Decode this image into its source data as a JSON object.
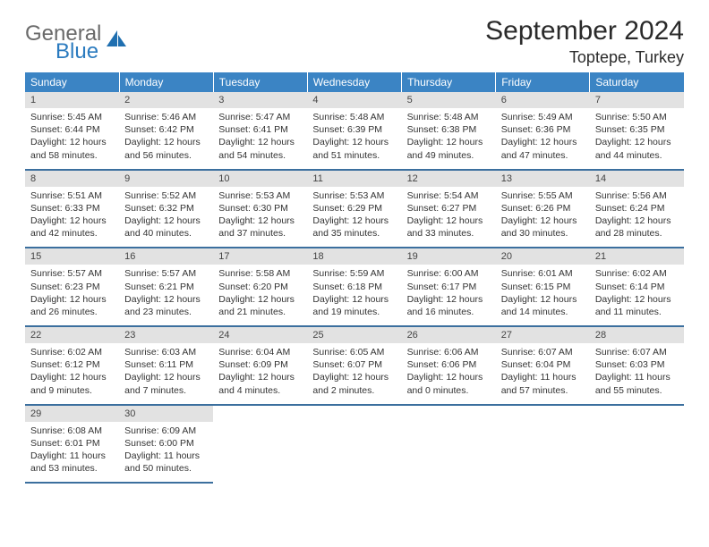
{
  "brand": {
    "word1": "General",
    "word2": "Blue"
  },
  "title": "September 2024",
  "location": "Toptepe, Turkey",
  "colors": {
    "header_bg": "#3b84c4",
    "header_fg": "#ffffff",
    "daynum_bg": "#e2e2e2",
    "row_divider": "#3b6f9e",
    "logo_gray": "#6a6a6a",
    "logo_blue": "#2b7bbf"
  },
  "weekdays": [
    "Sunday",
    "Monday",
    "Tuesday",
    "Wednesday",
    "Thursday",
    "Friday",
    "Saturday"
  ],
  "weeks": [
    [
      {
        "n": "1",
        "sr": "5:45 AM",
        "ss": "6:44 PM",
        "dl": "12 hours and 58 minutes."
      },
      {
        "n": "2",
        "sr": "5:46 AM",
        "ss": "6:42 PM",
        "dl": "12 hours and 56 minutes."
      },
      {
        "n": "3",
        "sr": "5:47 AM",
        "ss": "6:41 PM",
        "dl": "12 hours and 54 minutes."
      },
      {
        "n": "4",
        "sr": "5:48 AM",
        "ss": "6:39 PM",
        "dl": "12 hours and 51 minutes."
      },
      {
        "n": "5",
        "sr": "5:48 AM",
        "ss": "6:38 PM",
        "dl": "12 hours and 49 minutes."
      },
      {
        "n": "6",
        "sr": "5:49 AM",
        "ss": "6:36 PM",
        "dl": "12 hours and 47 minutes."
      },
      {
        "n": "7",
        "sr": "5:50 AM",
        "ss": "6:35 PM",
        "dl": "12 hours and 44 minutes."
      }
    ],
    [
      {
        "n": "8",
        "sr": "5:51 AM",
        "ss": "6:33 PM",
        "dl": "12 hours and 42 minutes."
      },
      {
        "n": "9",
        "sr": "5:52 AM",
        "ss": "6:32 PM",
        "dl": "12 hours and 40 minutes."
      },
      {
        "n": "10",
        "sr": "5:53 AM",
        "ss": "6:30 PM",
        "dl": "12 hours and 37 minutes."
      },
      {
        "n": "11",
        "sr": "5:53 AM",
        "ss": "6:29 PM",
        "dl": "12 hours and 35 minutes."
      },
      {
        "n": "12",
        "sr": "5:54 AM",
        "ss": "6:27 PM",
        "dl": "12 hours and 33 minutes."
      },
      {
        "n": "13",
        "sr": "5:55 AM",
        "ss": "6:26 PM",
        "dl": "12 hours and 30 minutes."
      },
      {
        "n": "14",
        "sr": "5:56 AM",
        "ss": "6:24 PM",
        "dl": "12 hours and 28 minutes."
      }
    ],
    [
      {
        "n": "15",
        "sr": "5:57 AM",
        "ss": "6:23 PM",
        "dl": "12 hours and 26 minutes."
      },
      {
        "n": "16",
        "sr": "5:57 AM",
        "ss": "6:21 PM",
        "dl": "12 hours and 23 minutes."
      },
      {
        "n": "17",
        "sr": "5:58 AM",
        "ss": "6:20 PM",
        "dl": "12 hours and 21 minutes."
      },
      {
        "n": "18",
        "sr": "5:59 AM",
        "ss": "6:18 PM",
        "dl": "12 hours and 19 minutes."
      },
      {
        "n": "19",
        "sr": "6:00 AM",
        "ss": "6:17 PM",
        "dl": "12 hours and 16 minutes."
      },
      {
        "n": "20",
        "sr": "6:01 AM",
        "ss": "6:15 PM",
        "dl": "12 hours and 14 minutes."
      },
      {
        "n": "21",
        "sr": "6:02 AM",
        "ss": "6:14 PM",
        "dl": "12 hours and 11 minutes."
      }
    ],
    [
      {
        "n": "22",
        "sr": "6:02 AM",
        "ss": "6:12 PM",
        "dl": "12 hours and 9 minutes."
      },
      {
        "n": "23",
        "sr": "6:03 AM",
        "ss": "6:11 PM",
        "dl": "12 hours and 7 minutes."
      },
      {
        "n": "24",
        "sr": "6:04 AM",
        "ss": "6:09 PM",
        "dl": "12 hours and 4 minutes."
      },
      {
        "n": "25",
        "sr": "6:05 AM",
        "ss": "6:07 PM",
        "dl": "12 hours and 2 minutes."
      },
      {
        "n": "26",
        "sr": "6:06 AM",
        "ss": "6:06 PM",
        "dl": "12 hours and 0 minutes."
      },
      {
        "n": "27",
        "sr": "6:07 AM",
        "ss": "6:04 PM",
        "dl": "11 hours and 57 minutes."
      },
      {
        "n": "28",
        "sr": "6:07 AM",
        "ss": "6:03 PM",
        "dl": "11 hours and 55 minutes."
      }
    ],
    [
      {
        "n": "29",
        "sr": "6:08 AM",
        "ss": "6:01 PM",
        "dl": "11 hours and 53 minutes."
      },
      {
        "n": "30",
        "sr": "6:09 AM",
        "ss": "6:00 PM",
        "dl": "11 hours and 50 minutes."
      },
      null,
      null,
      null,
      null,
      null
    ]
  ],
  "labels": {
    "sunrise": "Sunrise:",
    "sunset": "Sunset:",
    "daylight": "Daylight:"
  }
}
